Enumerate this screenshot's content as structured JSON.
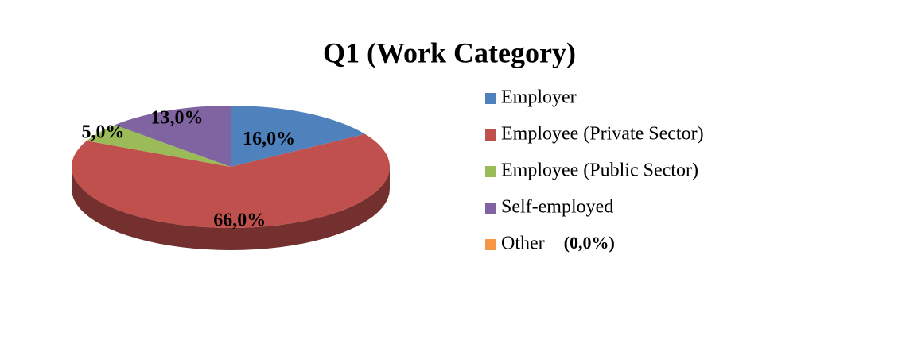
{
  "chart_data": {
    "type": "pie",
    "title": "Q1 (Work Category)",
    "categories": [
      "Employer",
      "Employee (Private Sector)",
      "Employee (Public Sector)",
      "Self-employed",
      "Other"
    ],
    "values": [
      16,
      66,
      5,
      13,
      0
    ],
    "value_labels": [
      "16,0%",
      "66,0%",
      "5,0%",
      "13,0%",
      "(0,0%)"
    ],
    "colors": [
      "#4f81bd",
      "#c0504d",
      "#9bbb59",
      "#8064a2",
      "#f79646"
    ],
    "legend": "right"
  }
}
